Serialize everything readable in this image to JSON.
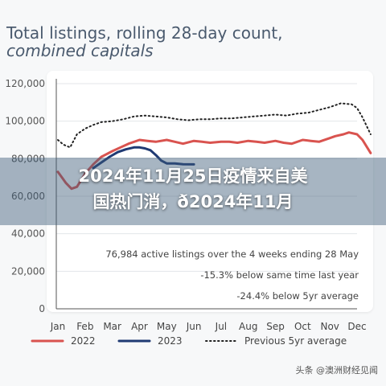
{
  "header": {
    "title_line1": "Total listings, rolling 28-day count,",
    "title_line2": "combined capitals"
  },
  "banner": {
    "line1": "2024年11月25日疫情来自美",
    "line2": "国热门消，ð2024年11月"
  },
  "watermark": "头条 @澳洲财经见闻",
  "annotations": [
    "76,984 active listings over the 4 weeks ending 28 May",
    "-15.3% below same time last year",
    "-24.4% below 5yr average"
  ],
  "colors": {
    "s2022": "#d9534f",
    "s2023": "#1f3a73",
    "prev5yr": "#222222"
  },
  "chart_data": {
    "type": "line",
    "title": "Total listings, rolling 28-day count, combined capitals",
    "categories": [
      "Jan",
      "Feb",
      "Mar",
      "Apr",
      "May",
      "Jun",
      "Jul",
      "Aug",
      "Sep",
      "Oct",
      "Nov",
      "Dec"
    ],
    "yticks": [
      "0",
      "20,000",
      "40,000",
      "60,000",
      "80,000",
      "100,000",
      "120,000"
    ],
    "ylim": [
      0,
      120000
    ],
    "legend": "bottom",
    "series": [
      {
        "name": "2022",
        "x": [
          0.0,
          0.15,
          0.3,
          0.5,
          0.7,
          1.0,
          1.3,
          1.6,
          2.0,
          2.3,
          2.6,
          3.0,
          3.3,
          3.6,
          4.0,
          4.3,
          4.6,
          5.0,
          5.3,
          5.6,
          6.0,
          6.3,
          6.6,
          7.0,
          7.3,
          7.6,
          8.0,
          8.3,
          8.6,
          9.0,
          9.3,
          9.6,
          10.0,
          10.2,
          10.5,
          10.7,
          11.0,
          11.2,
          11.5
        ],
        "values": [
          73000,
          70000,
          67000,
          64000,
          65000,
          72000,
          77000,
          81000,
          84000,
          86000,
          88000,
          90000,
          89500,
          89000,
          90000,
          89000,
          88000,
          89500,
          89000,
          88500,
          89000,
          89000,
          88500,
          89500,
          89000,
          88500,
          89500,
          88500,
          88000,
          90000,
          89500,
          89000,
          91000,
          92000,
          93000,
          94000,
          93000,
          90000,
          83000
        ]
      },
      {
        "name": "2023",
        "x": [
          1.3,
          1.6,
          1.9,
          2.2,
          2.5,
          2.8,
          3.0,
          3.2,
          3.4,
          3.6,
          3.8,
          4.0,
          4.3,
          4.6,
          5.0
        ],
        "values": [
          75000,
          78000,
          81000,
          83500,
          85000,
          86000,
          86000,
          85500,
          84500,
          82000,
          79000,
          77500,
          77500,
          77000,
          76984
        ]
      },
      {
        "name": "Previous 5yr average",
        "x": [
          0.0,
          0.2,
          0.45,
          0.7,
          1.0,
          1.3,
          1.6,
          2.0,
          2.4,
          2.8,
          3.2,
          3.6,
          4.0,
          4.4,
          4.8,
          5.2,
          5.6,
          6.0,
          6.4,
          6.8,
          7.2,
          7.6,
          8.0,
          8.4,
          8.8,
          9.2,
          9.6,
          10.0,
          10.4,
          10.8,
          11.0,
          11.2,
          11.5
        ],
        "values": [
          90000,
          87500,
          86000,
          93000,
          96000,
          98000,
          99500,
          100000,
          101000,
          102500,
          103000,
          102500,
          102000,
          101000,
          100500,
          101000,
          101000,
          101500,
          101500,
          102000,
          102500,
          103000,
          103500,
          103000,
          104000,
          104500,
          106000,
          107500,
          109500,
          109000,
          107000,
          102000,
          93000
        ]
      }
    ]
  }
}
